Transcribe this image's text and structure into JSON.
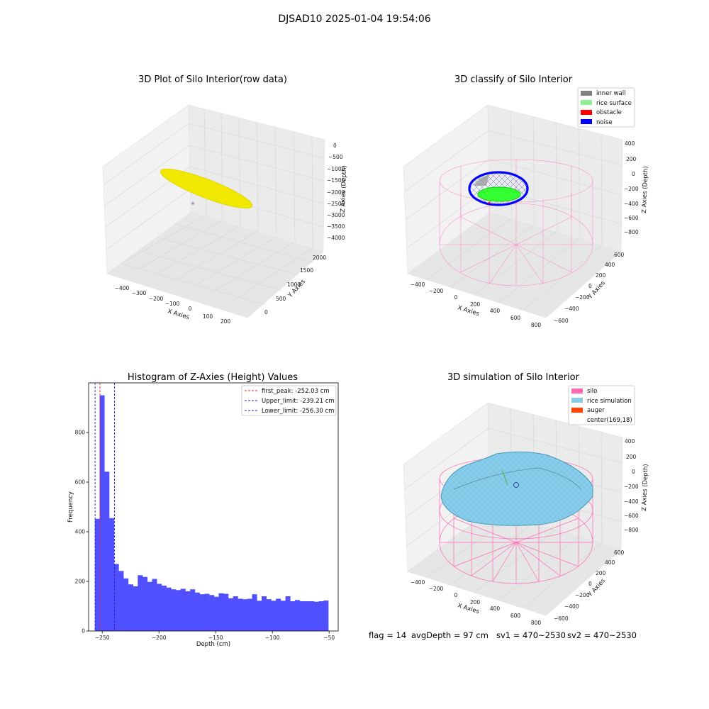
{
  "figure": {
    "suptitle": "DJSAD10 2025-01-04 19:54:06",
    "footer": {
      "flag": "flag = 14",
      "avg": "avgDepth = 97 cm",
      "sv1": "sv1 = 470~2530",
      "sv2": "sv2 = 470~2530"
    }
  },
  "chart_data": [
    {
      "type": "scatter",
      "title": "3D Plot of Silo Interior(row data)",
      "xlabel": "X Axies",
      "ylabel": "Y Axies",
      "zlabel": "Z Axies (Depth)",
      "x_ticks": [
        "−400",
        "−300",
        "−200",
        "−100",
        "0",
        "100",
        "200"
      ],
      "y_ticks": [
        "0",
        "500",
        "1000",
        "1500",
        "2000"
      ],
      "z_ticks": [
        "0",
        "−500",
        "−1000",
        "−1500",
        "−2000",
        "−2500",
        "−3000",
        "−3500",
        "−4000"
      ],
      "colors": {
        "points": "#f0e800"
      }
    },
    {
      "type": "scatter",
      "title": "3D classify of Silo Interior",
      "xlabel": "X Axies",
      "ylabel": "Y Axies",
      "zlabel": "Z Axies (Depth)",
      "x_ticks": [
        "−400",
        "−200",
        "0",
        "200",
        "400",
        "600",
        "800"
      ],
      "y_ticks": [
        "−600",
        "−400",
        "−200",
        "0",
        "200",
        "400",
        "600"
      ],
      "z_ticks": [
        "400",
        "200",
        "0",
        "−200",
        "−400",
        "−600",
        "−800"
      ],
      "legend": [
        {
          "label": "inner wall",
          "color": "#808080"
        },
        {
          "label": "rice surface",
          "color": "#90ee90"
        },
        {
          "label": "obstacle",
          "color": "#ff0000"
        },
        {
          "label": "noise",
          "color": "#0000ff"
        }
      ],
      "legend_position": "top-right"
    },
    {
      "type": "bar",
      "title": "Histogram of Z-Axies (Height) Values",
      "xlabel": "Depth (cm)",
      "ylabel": "Frequency",
      "xlim": [
        -262,
        -42
      ],
      "ylim": [
        0,
        1000
      ],
      "x_ticks": [
        -250,
        -200,
        -150,
        -100,
        -50
      ],
      "y_ticks": [
        0,
        200,
        400,
        600,
        800
      ],
      "bin_start": -256.5,
      "bin_width": 4.2,
      "values": [
        452,
        950,
        642,
        455,
        270,
        242,
        212,
        188,
        180,
        225,
        218,
        198,
        210,
        190,
        183,
        175,
        168,
        165,
        170,
        160,
        168,
        155,
        148,
        150,
        145,
        138,
        152,
        150,
        132,
        140,
        130,
        128,
        130,
        148,
        122,
        140,
        128,
        122,
        130,
        122,
        140,
        120,
        125,
        120,
        120,
        120,
        118,
        120,
        123
      ],
      "bar_color": "#5050ff",
      "lines": [
        {
          "label": "first_peak: -252.03 cm",
          "x": -252.03,
          "color": "#e02020"
        },
        {
          "label": "Upper_limit: -239.21 cm",
          "x": -239.21,
          "color": "#2020c0"
        },
        {
          "label": "Lower_limit: -256.30 cm",
          "x": -256.3,
          "color": "#2020c0"
        }
      ],
      "legend_position": "top-right",
      "grid": false
    },
    {
      "type": "scatter",
      "title": "3D simulation of Silo Interior",
      "xlabel": "X Axies",
      "ylabel": "Y Axies",
      "zlabel": "Z Axies (Depth)",
      "x_ticks": [
        "−400",
        "−200",
        "0",
        "200",
        "400",
        "600",
        "800"
      ],
      "y_ticks": [
        "−600",
        "−400",
        "−200",
        "0",
        "200",
        "400",
        "600"
      ],
      "z_ticks": [
        "400",
        "200",
        "0",
        "−200",
        "−400",
        "−600",
        "−800"
      ],
      "legend": [
        {
          "label": "silo",
          "color": "#ff69b4"
        },
        {
          "label": "rice simulation",
          "color": "#87ceeb"
        },
        {
          "label": "auger",
          "color": "#ff4500"
        },
        {
          "label": "center(169,18)",
          "color": null
        }
      ],
      "legend_position": "top-right"
    }
  ]
}
